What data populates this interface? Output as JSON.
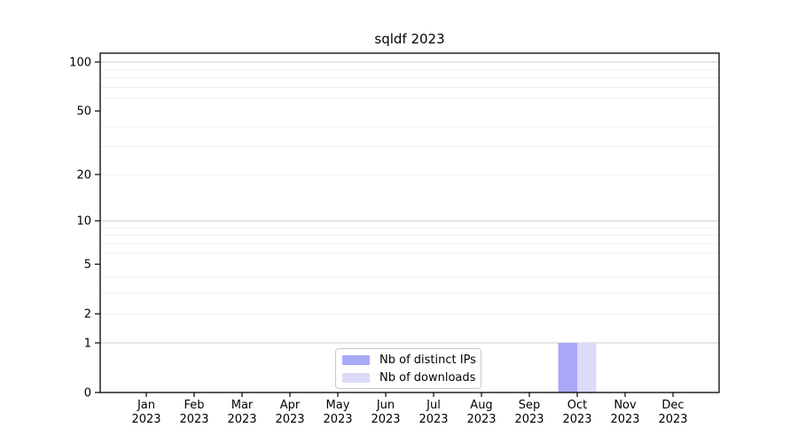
{
  "chart_data": {
    "type": "bar",
    "title": "sqldf 2023",
    "categories": [
      {
        "month": "Jan",
        "year": "2023"
      },
      {
        "month": "Feb",
        "year": "2023"
      },
      {
        "month": "Mar",
        "year": "2023"
      },
      {
        "month": "Apr",
        "year": "2023"
      },
      {
        "month": "May",
        "year": "2023"
      },
      {
        "month": "Jun",
        "year": "2023"
      },
      {
        "month": "Jul",
        "year": "2023"
      },
      {
        "month": "Aug",
        "year": "2023"
      },
      {
        "month": "Sep",
        "year": "2023"
      },
      {
        "month": "Oct",
        "year": "2023"
      },
      {
        "month": "Nov",
        "year": "2023"
      },
      {
        "month": "Dec",
        "year": "2023"
      }
    ],
    "series": [
      {
        "name": "Nb of distinct IPs",
        "color": "#a9a9f8",
        "values": [
          0,
          0,
          0,
          0,
          0,
          0,
          0,
          0,
          0,
          1,
          0,
          0
        ]
      },
      {
        "name": "Nb of downloads",
        "color": "#dbdbf9",
        "values": [
          0,
          0,
          0,
          0,
          0,
          0,
          0,
          0,
          0,
          1,
          0,
          0
        ]
      }
    ],
    "yscale": "log1p",
    "ylim": [
      0,
      114
    ],
    "ytick_values": [
      0,
      1,
      2,
      5,
      10,
      20,
      50,
      100
    ],
    "ytick_labels": [
      "0",
      "1",
      "2",
      "5",
      "10",
      "20",
      "50",
      "100"
    ],
    "ygrid_decade_values": [
      1,
      10,
      100
    ],
    "ygrid_light_values": [
      2,
      3,
      4,
      6,
      7,
      8,
      9,
      20,
      30,
      40,
      60,
      70,
      80,
      90
    ],
    "grid": {
      "decade_color": "#cccccc",
      "light_color": "#ededed"
    },
    "legend": {
      "position": "bottom-center",
      "border_color": "#c9c9c9"
    },
    "colors": {
      "axis": "#000000",
      "text": "#000000",
      "background": "#ffffff"
    }
  }
}
